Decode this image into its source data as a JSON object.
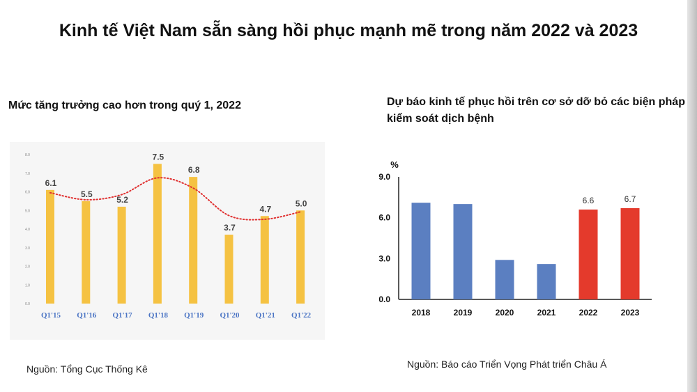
{
  "header": {
    "title": "Kinh tế Việt Nam sẵn sàng hồi phục mạnh mẽ trong năm 2022 và 2023"
  },
  "chart_data": [
    {
      "type": "bar",
      "title": "Mức tăng trưởng cao hơn trong quý 1, 2022",
      "categories": [
        "Q1'15",
        "Q1'16",
        "Q1'17",
        "Q1'18",
        "Q1'19",
        "Q1'20",
        "Q1'21",
        "Q1'22"
      ],
      "values": [
        6.1,
        5.5,
        5.2,
        7.5,
        6.8,
        3.7,
        4.7,
        5.0
      ],
      "data_labels": [
        "6.1",
        "5.5",
        "5.2",
        "7.5",
        "6.8",
        "3.7",
        "4.7",
        "5.0"
      ],
      "yticks": [
        "0.0",
        "1.0",
        "2.0",
        "3.0",
        "4.0",
        "5.0",
        "6.0",
        "7.0",
        "8.0"
      ],
      "ylim": [
        0,
        8
      ],
      "trendline": "dotted",
      "bar_color": "#f5c242",
      "trend_color": "#e03030",
      "tick_label_color": "#4a74c4",
      "source": "Nguồn: Tổng Cục Thống Kê"
    },
    {
      "type": "bar",
      "title": "Dự báo kinh tế phục hồi trên cơ sở dỡ bỏ các biện pháp kiểm soát dịch bệnh",
      "ylabel": "%",
      "categories": [
        "2018",
        "2019",
        "2020",
        "2021",
        "2022",
        "2023"
      ],
      "values": [
        7.1,
        7.0,
        2.9,
        2.6,
        6.6,
        6.7
      ],
      "data_labels": [
        "",
        "",
        "",
        "",
        "6.6",
        "6.7"
      ],
      "colors": [
        "#5b7fc1",
        "#5b7fc1",
        "#5b7fc1",
        "#5b7fc1",
        "#e43a2c",
        "#e43a2c"
      ],
      "yticks": [
        "0.0",
        "3.0",
        "6.0",
        "9.0"
      ],
      "ylim": [
        0,
        9
      ],
      "source": "Nguồn: Báo cáo Triển Vọng Phát triển Châu Á"
    }
  ]
}
